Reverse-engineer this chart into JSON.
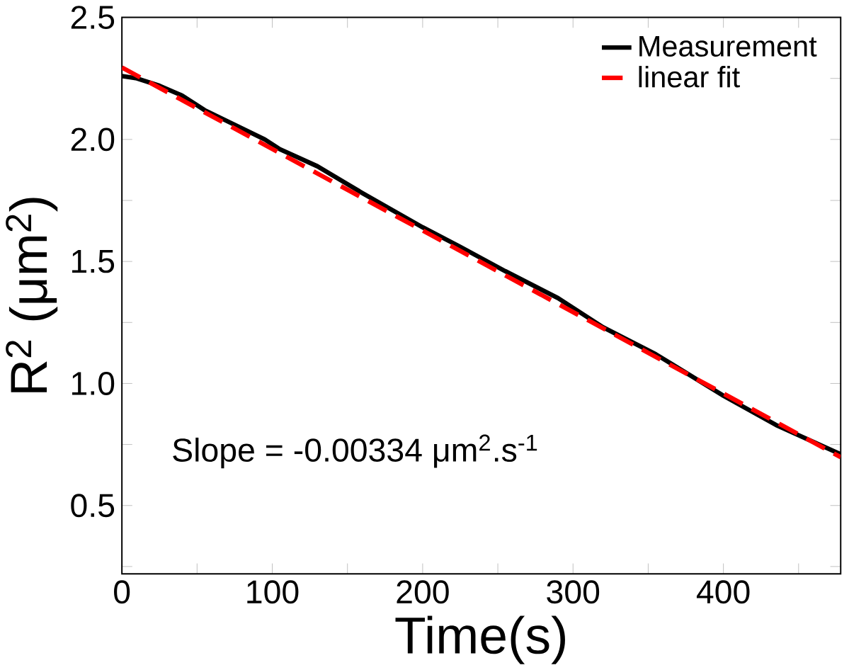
{
  "chart_data": {
    "type": "line",
    "xlabel": "Time(s)",
    "ylabel": "R$^{2}$ (μm$^{2}$)",
    "xlim": [
      0,
      478
    ],
    "ylim": [
      0.22,
      2.5
    ],
    "xticks": [
      0,
      {
        "value": 50,
        "label": null
      },
      100,
      {
        "value": 150,
        "label": null
      },
      200,
      {
        "value": 250,
        "label": null
      },
      300,
      {
        "value": 350,
        "label": null
      },
      400,
      {
        "value": 450,
        "label": null
      }
    ],
    "yticks": [
      {
        "value": 0.25,
        "label": null
      },
      0.5,
      {
        "value": 0.75,
        "label": null
      },
      {
        "value": 1,
        "label": "1.0"
      },
      {
        "value": 1.25,
        "label": null
      },
      1.5,
      {
        "value": 1.75,
        "label": null
      },
      {
        "value": 2,
        "label": "2.0"
      },
      {
        "value": 2.25,
        "label": null
      },
      2.5
    ],
    "legend": "top right",
    "grid": false,
    "marker": "none",
    "annotations": [
      "Slope = -0.00334 μm$^{2}$.s$^{-1}$"
    ],
    "series": [
      {
        "name": "Measurement",
        "color": "#000000",
        "line_style": "solid",
        "x": [
          0,
          10,
          25,
          40,
          55,
          75,
          95,
          105,
          130,
          160,
          200,
          225,
          255,
          290,
          320,
          355,
          400,
          435,
          478
        ],
        "values": [
          2.26,
          2.25,
          2.22,
          2.18,
          2.12,
          2.06,
          2.0,
          1.96,
          1.89,
          1.78,
          1.64,
          1.56,
          1.46,
          1.35,
          1.23,
          1.12,
          0.95,
          0.83,
          0.71
        ]
      },
      {
        "name": "linear fit",
        "color": "#ff0000",
        "line_style": "dashed",
        "x": [
          0,
          478
        ],
        "values": [
          2.295,
          0.698
        ]
      }
    ]
  }
}
